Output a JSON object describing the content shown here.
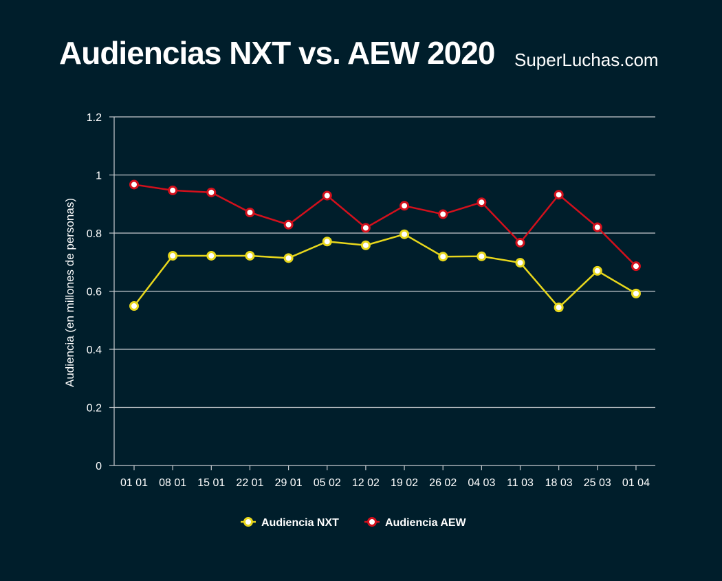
{
  "page": {
    "title": "Audiencias NXT vs. AEW 2020",
    "brand": "SuperLuchas.com"
  },
  "colors": {
    "background": "#001e2b",
    "nxt": "#e8d71c",
    "aew": "#d3101c",
    "grid": "#c8ccd0",
    "text": "#ffffff"
  },
  "chart_data": {
    "type": "line",
    "title": "Audiencias NXT vs. AEW 2020",
    "xlabel": "",
    "ylabel": "Audiencia (en millones de personas)",
    "ylim": [
      0,
      1.2
    ],
    "yticks": [
      0,
      0.2,
      0.4,
      0.6,
      0.8,
      1,
      1.2
    ],
    "ytick_labels": [
      "0",
      "0.2",
      "0.4",
      "0.6",
      "0.8",
      "1",
      "1.2"
    ],
    "grid": true,
    "legend_position": "bottom-center",
    "categories": [
      "01 01",
      "08 01",
      "15 01",
      "22 01",
      "29 01",
      "05 02",
      "12 02",
      "19 02",
      "26 02",
      "04 03",
      "11 03",
      "18 03",
      "25 03",
      "01 04"
    ],
    "series": [
      {
        "name": "Audiencia NXT",
        "color_key": "nxt",
        "values": [
          0.549,
          0.722,
          0.722,
          0.722,
          0.714,
          0.771,
          0.758,
          0.796,
          0.719,
          0.72,
          0.698,
          0.544,
          0.67,
          0.592
        ]
      },
      {
        "name": "Audiencia AEW",
        "color_key": "aew",
        "values": [
          0.967,
          0.947,
          0.94,
          0.871,
          0.829,
          0.929,
          0.818,
          0.894,
          0.865,
          0.906,
          0.767,
          0.932,
          0.82,
          0.686
        ]
      }
    ]
  }
}
